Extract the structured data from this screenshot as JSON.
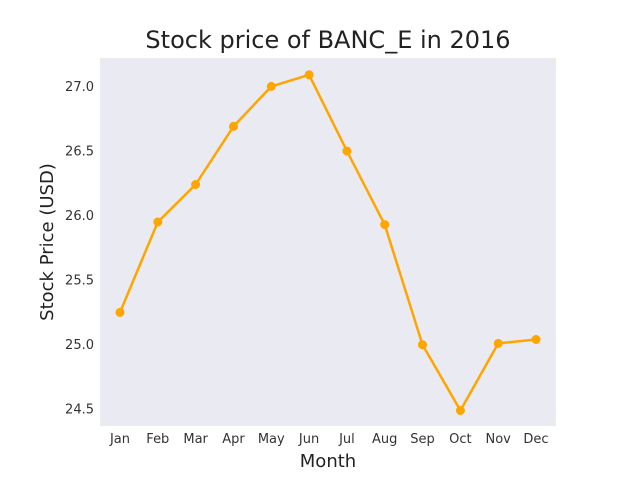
{
  "chart_data": {
    "type": "line",
    "title": "Stock price of BANC_E in 2016",
    "xlabel": "Month",
    "ylabel": "Stock Price (USD)",
    "categories": [
      "Jan",
      "Feb",
      "Mar",
      "Apr",
      "May",
      "Jun",
      "Jul",
      "Aug",
      "Sep",
      "Oct",
      "Nov",
      "Dec"
    ],
    "series": [
      {
        "values": [
          25.25,
          25.95,
          26.24,
          26.69,
          27.0,
          27.09,
          26.5,
          25.93,
          25.0,
          24.49,
          25.01,
          25.04
        ],
        "color": "#FFA500"
      }
    ],
    "ylim": [
      24.37,
      27.22
    ],
    "yticks": [
      24.5,
      25.0,
      25.5,
      26.0,
      26.5,
      27.0
    ],
    "ytick_labels": [
      "24.5",
      "25.0",
      "25.5",
      "26.0",
      "26.5",
      "27.0"
    ],
    "grid": false,
    "plot_background": "#EAEAF2",
    "legend": "none"
  }
}
